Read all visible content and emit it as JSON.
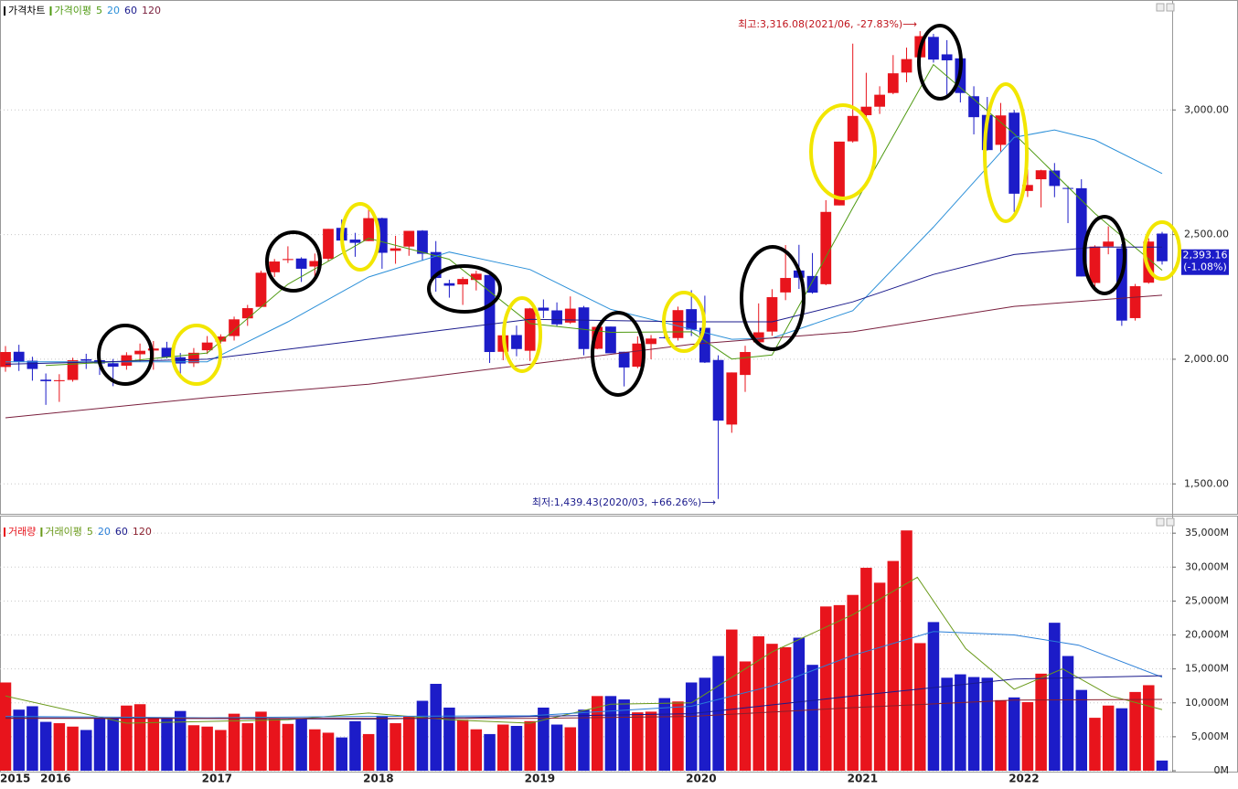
{
  "chart_data": [
    {
      "type": "candlestick",
      "title": "가격차트",
      "ma_title": "가격이평",
      "xlim": [
        2015.75,
        2022.9167
      ],
      "ylim": [
        1380,
        3430
      ],
      "yticks": [
        {
          "value": 1500,
          "label": "1,500.00"
        },
        {
          "value": 2000,
          "label": "2,000.00"
        },
        {
          "value": 2500,
          "label": "2,500.00"
        },
        {
          "value": 3000,
          "label": "3,000.00"
        }
      ],
      "grid": true,
      "up_color": "#e8141c",
      "down_color": "#1c1cc8",
      "open": [
        1969,
        2030,
        1994,
        1918,
        1912,
        1917,
        2000,
        1996,
        1984,
        1974,
        2020,
        2035,
        2046,
        2008,
        1984,
        2036,
        2071,
        2093,
        2164,
        2210,
        2349,
        2398,
        2404,
        2372,
        2403,
        2527,
        2480,
        2474,
        2566,
        2435,
        2452,
        2516,
        2430,
        2305,
        2300,
        2318,
        2338,
        2030,
        2097,
        2034,
        2207,
        2196,
        2147,
        2208,
        2042,
        2131,
        2030,
        1970,
        2061,
        2088,
        2085,
        2201,
        2126,
        1997,
        1738,
        1937,
        2068,
        2111,
        2268,
        2356,
        2334,
        2301,
        2617,
        2874,
        2979,
        3013,
        3068,
        3150,
        3211,
        3293,
        3223,
        3207,
        3055,
        2980,
        2860,
        2989,
        2675,
        2722,
        2757,
        2687,
        2686,
        2306,
        2452,
        2445,
        2165,
        2307,
        2504
      ],
      "high": [
        2053,
        2058,
        2010,
        1943,
        1940,
        2006,
        2022,
        2003,
        2001,
        2028,
        2063,
        2073,
        2070,
        2025,
        2045,
        2093,
        2100,
        2171,
        2218,
        2355,
        2402,
        2453,
        2409,
        2424,
        2523,
        2561,
        2507,
        2607,
        2568,
        2495,
        2515,
        2518,
        2474,
        2319,
        2330,
        2355,
        2339,
        2117,
        2135,
        2206,
        2240,
        2228,
        2252,
        2214,
        2136,
        2131,
        2030,
        2092,
        2097,
        2171,
        2211,
        2277,
        2255,
        2016,
        1947,
        2054,
        2224,
        2281,
        2458,
        2459,
        2426,
        2638,
        2873,
        3266,
        3149,
        3095,
        3220,
        3250,
        3316.08,
        3305,
        3280,
        3210,
        3095,
        3052,
        3028,
        3000,
        2762,
        2760,
        2787,
        2695,
        2722,
        2457,
        2533,
        2462,
        2302,
        2485,
        2511
      ],
      "low": [
        1950,
        1953,
        1914,
        1817,
        1829,
        1910,
        1961,
        1937,
        1892,
        1958,
        1990,
        1958,
        2003,
        1931,
        1969,
        2021,
        2063,
        2075,
        2134,
        2208,
        2330,
        2386,
        2310,
        2311,
        2393,
        2471,
        2411,
        2474,
        2363,
        2383,
        2415,
        2395,
        2271,
        2247,
        2218,
        2276,
        1985,
        1996,
        2012,
        1993,
        2165,
        2133,
        2142,
        2016,
        2040,
        2024,
        1891,
        1964,
        2000,
        2083,
        2075,
        2093,
        1985,
        1439.43,
        1705,
        1869,
        2055,
        2094,
        2237,
        2282,
        2263,
        2297,
        2617,
        2869,
        2955,
        2984,
        3063,
        3111,
        3203,
        3190,
        3060,
        3030,
        2902,
        2837,
        2833,
        2591,
        2651,
        2609,
        2650,
        2546,
        2332,
        2276,
        2421,
        2134,
        2155,
        2303,
        2380
      ],
      "close": [
        2029,
        1991,
        1961,
        1912,
        1916,
        1996,
        1994,
        1983,
        1970,
        2016,
        2034,
        2043,
        2008,
        1983,
        2026,
        2067,
        2091,
        2160,
        2205,
        2347,
        2392,
        2402,
        2363,
        2394,
        2523,
        2476,
        2467,
        2566,
        2427,
        2445,
        2515,
        2423,
        2326,
        2295,
        2322,
        2343,
        2029,
        2096,
        2041,
        2204,
        2195,
        2140,
        2203,
        2041,
        2130,
        2024,
        1967,
        2063,
        2083,
        2087,
        2197,
        2119,
        1987,
        1754,
        1947,
        2029,
        2108,
        2249,
        2326,
        2327,
        2267,
        2591,
        2873,
        2976,
        3013,
        3061,
        3147,
        3204,
        3296,
        3202,
        3199,
        3068,
        2971,
        2839,
        2978,
        2664,
        2699,
        2758,
        2695,
        2686,
        2332,
        2452,
        2472,
        2155,
        2293,
        2472,
        2393.16
      ],
      "ma_lines": [
        {
          "name": "5",
          "color": "#4f9a12",
          "x": [
            2016.0,
            2016.5,
            2017.0,
            2017.5,
            2018.0,
            2018.5,
            2019.0,
            2019.5,
            2020.0,
            2020.25,
            2020.5,
            2021.0,
            2021.5,
            2022.0,
            2022.5,
            2022.9167
          ],
          "values": [
            1975,
            1992,
            2025,
            2301,
            2485,
            2401,
            2143,
            2108,
            2110,
            2001,
            2017,
            2607,
            3182,
            2904,
            2585,
            2357
          ]
        },
        {
          "name": "20",
          "color": "#2a8fd8",
          "x": [
            2015.75,
            2017.0,
            2017.5,
            2018.0,
            2018.5,
            2019.0,
            2019.5,
            2020.0,
            2020.25,
            2020.5,
            2021.0,
            2021.5,
            2022.0,
            2022.25,
            2022.5,
            2022.9167
          ],
          "values": [
            1990,
            1990,
            2150,
            2330,
            2430,
            2360,
            2200,
            2120,
            2080,
            2085,
            2195,
            2530,
            2890,
            2920,
            2880,
            2745
          ]
        },
        {
          "name": "60",
          "color": "#1a1a8c",
          "x": [
            2015.75,
            2017.0,
            2018.0,
            2019.0,
            2020.0,
            2020.5,
            2021.0,
            2021.5,
            2022.0,
            2022.5,
            2022.9167
          ],
          "values": [
            1980,
            2000,
            2080,
            2160,
            2150,
            2150,
            2230,
            2340,
            2420,
            2450,
            2450
          ]
        },
        {
          "name": "120",
          "color": "#7a1f3d",
          "x": [
            2015.75,
            2017.0,
            2018.0,
            2019.0,
            2020.0,
            2021.0,
            2022.0,
            2022.9167
          ],
          "values": [
            1765,
            1846,
            1900,
            1980,
            2060,
            2110,
            2212,
            2257
          ]
        }
      ],
      "annotations": [
        {
          "text": "최고:3,316.08(2021/06, -27.83%)⟶",
          "color": "#c0141c"
        },
        {
          "text": "최저:1,439.43(2020/03, +66.26%)⟶",
          "color": "#1a1a8c"
        }
      ],
      "current_label": "2,393.16",
      "current_change": "(-1.08%)"
    },
    {
      "type": "bar",
      "title": "거래량",
      "ma_title": "거래이평",
      "xlim": [
        2015.75,
        2022.9167
      ],
      "categories": [
        "2015",
        null,
        null,
        "2016",
        null,
        null,
        null,
        null,
        null,
        null,
        null,
        null,
        null,
        null,
        null,
        "2017",
        null,
        null,
        null,
        null,
        null,
        null,
        null,
        null,
        null,
        null,
        null,
        "2018",
        null,
        null,
        null,
        null,
        null,
        null,
        null,
        null,
        null,
        null,
        null,
        "2019",
        null,
        null,
        null,
        null,
        null,
        null,
        null,
        null,
        null,
        null,
        null,
        "2020",
        null,
        null,
        null,
        null,
        null,
        null,
        null,
        null,
        null,
        null,
        null,
        "2021",
        null,
        null,
        null,
        null,
        null,
        null,
        null,
        null,
        null,
        null,
        null,
        "2022",
        null,
        null,
        null,
        null,
        null,
        null,
        null,
        null,
        null,
        null,
        null
      ],
      "values": [
        13000,
        9000,
        9500,
        7200,
        7000,
        6500,
        6000,
        7800,
        7800,
        9600,
        9800,
        7800,
        7800,
        8800,
        6700,
        6500,
        6000,
        8400,
        7000,
        8700,
        7600,
        6900,
        7600,
        6100,
        5600,
        4900,
        7300,
        5400,
        8100,
        7000,
        8000,
        10300,
        12800,
        9300,
        7500,
        6100,
        5400,
        6800,
        6600,
        7300,
        9300,
        6800,
        6400,
        9000,
        11000,
        11000,
        10500,
        8600,
        8700,
        10700,
        10200,
        13000,
        13700,
        16900,
        20800,
        16100,
        19800,
        18700,
        18200,
        19600,
        15600,
        24200,
        24400,
        25900,
        29900,
        27700,
        30900,
        35400,
        18800,
        21900,
        13700,
        14200,
        13800,
        13700,
        10400,
        10800,
        10100,
        14300,
        21800,
        16900,
        11900,
        7800,
        9600,
        9200,
        11600,
        12600,
        1500
      ],
      "ylim": [
        0,
        36100
      ],
      "yticks": [
        {
          "value": 0,
          "label": "0M"
        },
        {
          "value": 5000,
          "label": "5,000M"
        },
        {
          "value": 10000,
          "label": "10,000M"
        },
        {
          "value": 15000,
          "label": "15,000M"
        },
        {
          "value": 20000,
          "label": "20,000M"
        },
        {
          "value": 25000,
          "label": "25,000M"
        },
        {
          "value": 30000,
          "label": "30,000M"
        },
        {
          "value": 35000,
          "label": "35,000M"
        }
      ],
      "grid": true,
      "ma_lines": [
        {
          "name": "5",
          "color": "#6a9a1a",
          "x": [
            2015.75,
            2016.5,
            2017.5,
            2018.0,
            2018.5,
            2019.0,
            2019.5,
            2020.0,
            2020.5,
            2021.0,
            2021.4,
            2021.7,
            2022.0,
            2022.3,
            2022.6,
            2022.9167
          ],
          "values": [
            11000,
            7000,
            7500,
            8500,
            7500,
            7000,
            9800,
            10000,
            17500,
            23000,
            28500,
            18000,
            12000,
            15000,
            11000,
            9000
          ]
        },
        {
          "name": "20",
          "color": "#2a7fd8",
          "x": [
            2015.75,
            2017.0,
            2018.0,
            2019.0,
            2020.0,
            2020.5,
            2021.0,
            2021.5,
            2022.0,
            2022.4,
            2022.9167
          ],
          "values": [
            8000,
            7800,
            8000,
            8100,
            9500,
            12500,
            17000,
            20500,
            20000,
            18500,
            13800
          ]
        },
        {
          "name": "60",
          "color": "#1a1a8c",
          "x": [
            2015.75,
            2018.0,
            2020.0,
            2021.0,
            2022.0,
            2022.9167
          ],
          "values": [
            7800,
            7600,
            8400,
            11000,
            13500,
            14000
          ]
        },
        {
          "name": "120",
          "color": "#8a1f2d",
          "x": [
            2015.75,
            2019.0,
            2020.0,
            2021.0,
            2022.0,
            2022.9167
          ],
          "values": [
            7700,
            7700,
            8000,
            9300,
            10400,
            10500
          ]
        }
      ]
    }
  ]
}
